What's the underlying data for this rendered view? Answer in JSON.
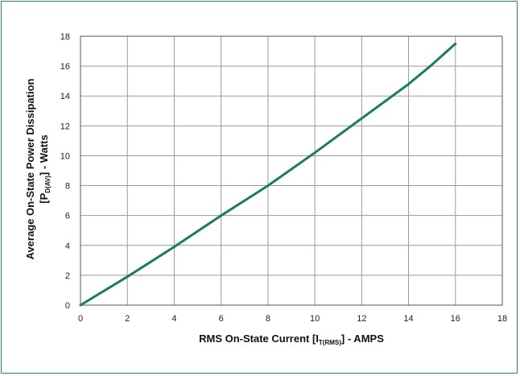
{
  "colors": {
    "series": "#1a7f4e",
    "grid": "#9a9a9a",
    "frame": "#2e8b57"
  },
  "chart_data": {
    "type": "line",
    "grid": true,
    "xlim": [
      0,
      18
    ],
    "ylim": [
      0,
      18
    ],
    "xticks": [
      0,
      2,
      4,
      6,
      8,
      10,
      12,
      14,
      16,
      18
    ],
    "yticks": [
      0,
      2,
      4,
      6,
      8,
      10,
      12,
      14,
      16,
      18
    ],
    "xlabel": {
      "main": "RMS On-State Current [I",
      "sub": "T(RMS)",
      "suffix": "] - AMPS"
    },
    "ylabel": {
      "line1": "Average On-State Power Dissipation",
      "line2_main": "[P",
      "line2_sub": "D(AV)",
      "line2_suffix": "] - Watts"
    },
    "series": [
      {
        "x": [
          0,
          2,
          4,
          6,
          8,
          10,
          12,
          14,
          15,
          16
        ],
        "y": [
          0,
          1.9,
          3.9,
          6.0,
          8.0,
          10.2,
          12.5,
          14.8,
          16.1,
          17.5
        ]
      }
    ]
  }
}
